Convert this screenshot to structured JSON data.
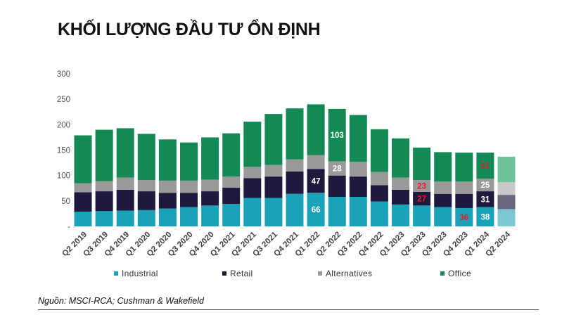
{
  "title": "KHỐI LƯỢNG ĐẦU TƯ ỔN ĐỊNH",
  "source": "Nguồn: MSCI-RCA; Cushman & Wakefield",
  "chart_data": {
    "type": "bar",
    "stacked": true,
    "categories": [
      "Q2 2019",
      "Q3 2019",
      "Q4 2019",
      "Q1 2020",
      "Q2 2020",
      "Q3 2020",
      "Q4 2020",
      "Q1 2021",
      "Q2 2021",
      "Q3 2021",
      "Q4 2021",
      "Q1 2022",
      "Q2 2022",
      "Q3 2022",
      "Q4 2022",
      "Q1 2023",
      "Q2 2023",
      "Q3 2023",
      "Q4 2023",
      "Q1 2024",
      "Q2 2024"
    ],
    "yticks": [
      "300",
      "250",
      "200",
      "150",
      "100",
      "50",
      "-"
    ],
    "ylim": [
      0,
      300
    ],
    "grid": false,
    "legend_position": "bottom",
    "series": [
      {
        "name": "Industrial",
        "color": "#1aa3b8",
        "values": [
          29,
          30,
          31,
          32,
          35,
          38,
          41,
          44,
          56,
          56,
          64,
          66,
          58,
          58,
          49,
          43,
          41,
          38,
          36,
          38,
          34
        ]
      },
      {
        "name": "Retail",
        "color": "#1f1a3d",
        "values": [
          38,
          39,
          41,
          37,
          31,
          28,
          28,
          32,
          39,
          42,
          44,
          47,
          42,
          40,
          32,
          29,
          27,
          26,
          28,
          31,
          28
        ]
      },
      {
        "name": "Alternatives",
        "color": "#999999",
        "values": [
          18,
          20,
          24,
          22,
          24,
          24,
          23,
          22,
          22,
          23,
          24,
          27,
          28,
          29,
          26,
          24,
          23,
          24,
          24,
          25,
          25
        ]
      },
      {
        "name": "Office",
        "color": "#138a55",
        "values": [
          94,
          101,
          97,
          91,
          81,
          75,
          83,
          85,
          89,
          100,
          100,
          100,
          103,
          92,
          84,
          77,
          64,
          58,
          57,
          51,
          50
        ]
      }
    ],
    "faded_categories": [
      "Q2 2024"
    ],
    "faded_colors": [
      "#7cc8d4",
      "#6a6680",
      "#c8c8c8",
      "#6dc29a"
    ],
    "data_labels": [
      {
        "category": "Q1 2022",
        "series": "Industrial",
        "text": "66",
        "color": "#ffffff"
      },
      {
        "category": "Q1 2022",
        "series": "Retail",
        "text": "47",
        "color": "#ffffff"
      },
      {
        "category": "Q2 2022",
        "series": "Alternatives",
        "text": "28",
        "color": "#ffffff"
      },
      {
        "category": "Q2 2022",
        "series": "Office",
        "text": "103",
        "color": "#ffffff"
      },
      {
        "category": "Q2 2023",
        "series": "Retail",
        "text": "27",
        "color": "#e0202a"
      },
      {
        "category": "Q2 2023",
        "series": "Alternatives",
        "text": "23",
        "color": "#e0202a"
      },
      {
        "category": "Q4 2023",
        "series": "Industrial",
        "text": "36",
        "color": "#e0202a"
      },
      {
        "category": "Q1 2024",
        "series": "Industrial",
        "text": "38",
        "color": "#ffffff"
      },
      {
        "category": "Q1 2024",
        "series": "Retail",
        "text": "31",
        "color": "#ffffff"
      },
      {
        "category": "Q1 2024",
        "series": "Alternatives",
        "text": "25",
        "color": "#ffffff"
      },
      {
        "category": "Q1 2024",
        "series": "Office",
        "text": "51",
        "color": "#e0202a"
      }
    ]
  }
}
